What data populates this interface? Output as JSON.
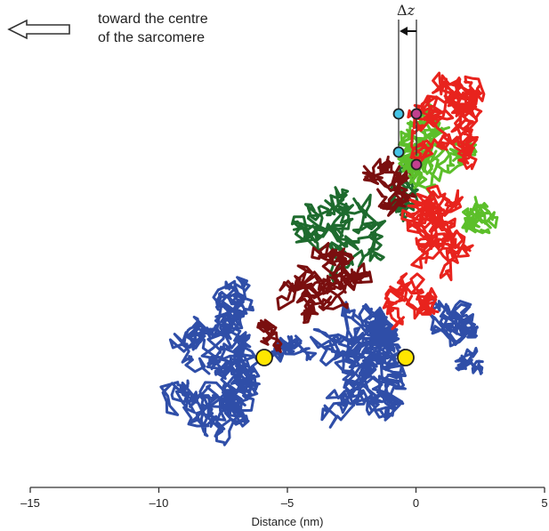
{
  "annotation": {
    "direction_line1": "toward the centre",
    "direction_line2": "of the sarcomere",
    "delta_symbol": "Δ",
    "delta_var": "z"
  },
  "axis": {
    "xlabel": "Distance (nm)",
    "min": -15,
    "max": 5,
    "ticks": [
      {
        "value": -15,
        "label": "–15"
      },
      {
        "value": -10,
        "label": "–10"
      },
      {
        "value": -5,
        "label": "–5"
      },
      {
        "value": 0,
        "label": "0"
      },
      {
        "value": 5,
        "label": "5"
      }
    ]
  },
  "colors": {
    "actin": "#2f4ea8",
    "myosin_dark_green": "#1e6b2e",
    "myosin_dark_red": "#7a0f0f",
    "myosin_light_green": "#5cbf2a",
    "myosin_red": "#e8231d",
    "marker_yellow": "#ffe600",
    "marker_cyan": "#45c4e6",
    "marker_magenta": "#c2408f",
    "axis": "#333333"
  }
}
